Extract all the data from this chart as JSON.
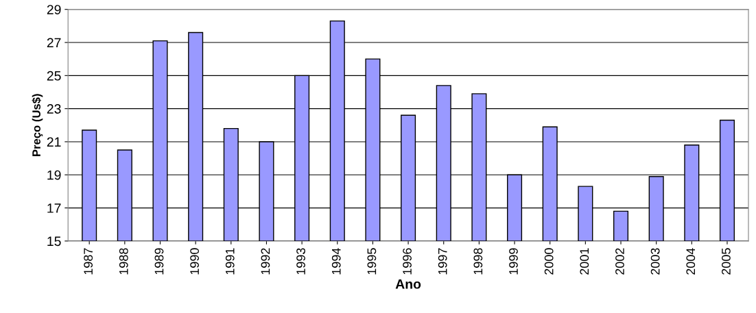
{
  "chart_data": {
    "type": "bar",
    "xlabel": "Ano",
    "ylabel": "Preço (Us$)",
    "categories": [
      "1987",
      "1988",
      "1989",
      "1990",
      "1991",
      "1992",
      "1993",
      "1994",
      "1995",
      "1996",
      "1997",
      "1998",
      "1999",
      "2000",
      "2001",
      "2002",
      "2003",
      "2004",
      "2005"
    ],
    "values": [
      21.7,
      20.5,
      27.1,
      27.6,
      21.8,
      21.0,
      25.0,
      28.3,
      26.0,
      22.6,
      24.4,
      23.9,
      19.0,
      21.9,
      18.3,
      16.8,
      18.9,
      20.8,
      22.3
    ],
    "color": "#9999ff",
    "ylim": [
      15,
      29
    ],
    "yticks": [
      15,
      17,
      19,
      21,
      23,
      25,
      27,
      29
    ],
    "grid": "y",
    "legend": false
  }
}
